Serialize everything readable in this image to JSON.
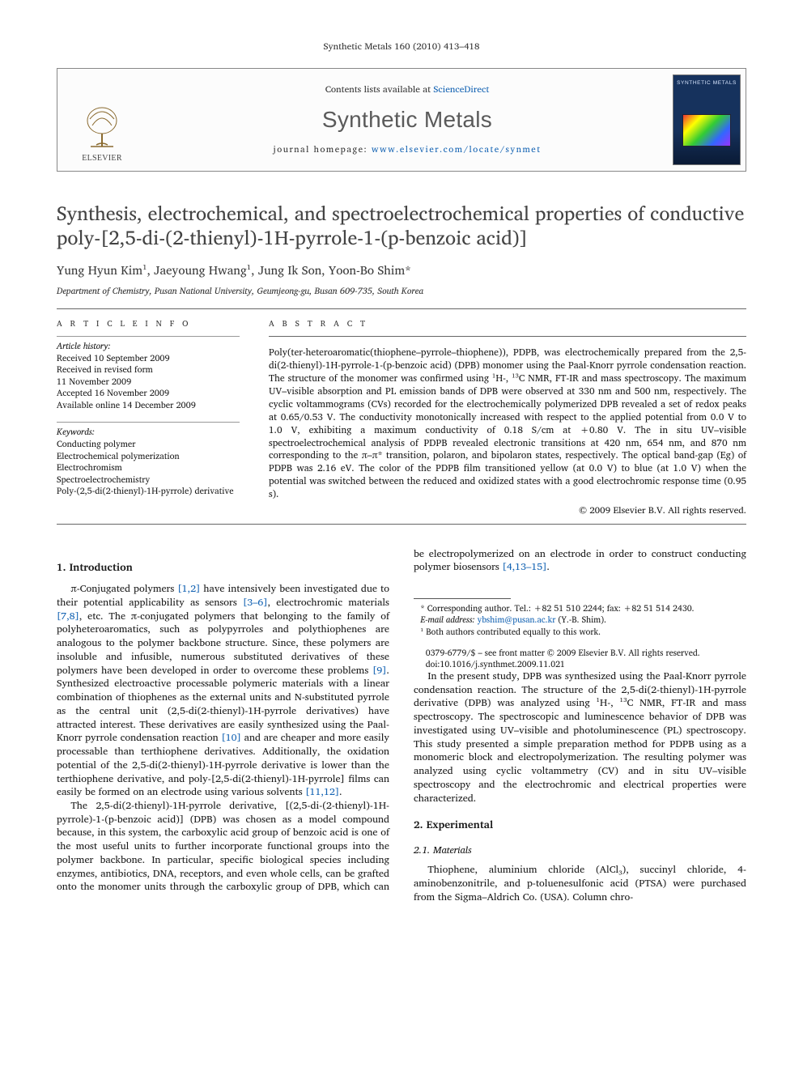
{
  "running_head": "Synthetic Metals 160 (2010) 413–418",
  "masthead": {
    "sd_prefix": "Contents lists available at ",
    "sd_link": "ScienceDirect",
    "journal": "Synthetic Metals",
    "homepage_prefix": "journal homepage: ",
    "homepage_url": "www.elsevier.com/locate/synmet",
    "publisher": "ELSEVIER",
    "cover_label": "SYNTHETIC METALS"
  },
  "article": {
    "title": "Synthesis, electrochemical, and spectroelectrochemical properties of conductive poly-[2,5-di-(2-thienyl)-1H-pyrrole-1-(p-benzoic acid)]",
    "authors_html": "Yung Hyun Kim¹, Jaeyoung Hwang¹, Jung Ik Son, Yoon-Bo Shim*",
    "affiliation": "Department of Chemistry, Pusan National University, Geumjeong-gu, Busan 609-735, South Korea"
  },
  "info": {
    "heading": "A R T I C L E   I N F O",
    "history_label": "Article history:",
    "received": "Received 10 September 2009",
    "revised1": "Received in revised form",
    "revised2": "11 November 2009",
    "accepted": "Accepted 16 November 2009",
    "online": "Available online 14 December 2009",
    "keywords_label": "Keywords:",
    "kw1": "Conducting polymer",
    "kw2": "Electrochemical polymerization",
    "kw3": "Electrochromism",
    "kw4": "Spectroelectrochemistry",
    "kw5": "Poly-(2,5-di(2-thienyl)-1H-pyrrole) derivative"
  },
  "abstract": {
    "heading": "A B S T R A C T",
    "text": "Poly(ter-heteroaromatic(thiophene–pyrrole–thiophene)), PDPB, was electrochemically prepared from the 2,5-di(2-thienyl)-1H-pyrrole-1-(p-benzoic acid) (DPB) monomer using the Paal-Knorr pyrrole condensation reaction. The structure of the monomer was confirmed using ¹H-, ¹³C NMR, FT-IR and mass spectroscopy. The maximum UV–visible absorption and PL emission bands of DPB were observed at 330 nm and 500 nm, respectively. The cyclic voltammograms (CVs) recorded for the electrochemically polymerized DPB revealed a set of redox peaks at 0.65/0.53 V. The conductivity monotonically increased with respect to the applied potential from 0.0 V to 1.0 V, exhibiting a maximum conductivity of 0.18 S/cm at +0.80 V. The in situ UV–visible spectroelectrochemical analysis of PDPB revealed electronic transitions at 420 nm, 654 nm, and 870 nm corresponding to the π–π* transition, polaron, and bipolaron states, respectively. The optical band-gap (Eg) of PDPB was 2.16 eV. The color of the PDPB film transitioned yellow (at 0.0 V) to blue (at 1.0 V) when the potential was switched between the reduced and oxidized states with a good electrochromic response time (0.95 s).",
    "copyright": "© 2009 Elsevier B.V. All rights reserved."
  },
  "sections": {
    "s1_title": "1.  Introduction",
    "s1_p1": "π-Conjugated polymers [1,2] have intensively been investigated due to their potential applicability as sensors [3–6], electrochromic materials [7,8], etc. The π-conjugated polymers that belonging to the family of polyheteroaromatics, such as polypyrroles and polythiophenes are analogous to the polymer backbone structure. Since, these polymers are insoluble and infusible, numerous substituted derivatives of these polymers have been developed in order to overcome these problems [9]. Synthesized electroactive processable polymeric materials with a linear combination of thiophenes as the external units and N-substituted pyrrole as the central unit (2,5-di(2-thienyl)-1H-pyrrole derivatives) have attracted interest. These derivatives are easily synthesized using the Paal-Knorr pyrrole condensation reaction [10] and are cheaper and more easily processable than terthiophene derivatives. Additionally, the oxidation potential of the 2,5-di(2-thienyl)-1H-pyrrole derivative is lower than the terthiophene derivative, and poly-[2,5-di(2-thienyl)-1H-pyrrole] films can easily be formed on an electrode using various solvents [11,12].",
    "s1_p2": "The 2,5-di(2-thienyl)-1H-pyrrole derivative, [(2,5-di-(2-thienyl)-1H-pyrrole)-1-(p-benzoic acid)] (DPB) was chosen as a model compound because, in this system, the carboxylic acid group of benzoic acid is one of the most useful units to further incorporate functional groups into the polymer backbone. In particular, specific biological species including enzymes, antibiotics, DNA, receptors, and even whole cells, can be grafted onto the monomer units through the carboxylic group of DPB, which can be electropolymerized on an electrode in order to construct conducting polymer biosensors [4,13–15].",
    "s1_p3": "In the present study, DPB was synthesized using the Paal-Knorr pyrrole condensation reaction. The structure of the 2,5-di(2-thienyl)-1H-pyrrole derivative (DPB) was analyzed using ¹H-, ¹³C NMR, FT-IR and mass spectroscopy. The spectroscopic and luminescence behavior of DPB was investigated using UV–visible and photoluminescence (PL) spectroscopy. This study presented a simple preparation method for PDPB using as a monomeric block and electropolymerization. The resulting polymer was analyzed using cyclic voltammetry (CV) and in situ UV–visible spectroscopy and the electrochromic and electrical properties were characterized.",
    "s2_title": "2.  Experimental",
    "s21_title": "2.1.  Materials",
    "s21_p1": "Thiophene, aluminium chloride (AlCl₃), succinyl chloride, 4-aminobenzonitrile, and p-toluenesulfonic acid (PTSA) were purchased from the Sigma–Aldrich Co. (USA). Column chro-"
  },
  "footnotes": {
    "corr": "* Corresponding author. Tel.: +82 51 510 2244; fax: +82 51 514 2430.",
    "email_lbl": "E-mail address: ",
    "email": "ybshim@pusan.ac.kr",
    "email_tail": " (Y.-B. Shim).",
    "equal": "¹ Both authors contributed equally to this work."
  },
  "doi": {
    "line1": "0379-6779/$ – see front matter © 2009 Elsevier B.V. All rights reserved.",
    "line2": "doi:10.1016/j.synthmet.2009.11.021"
  },
  "colors": {
    "link": "#1463b3",
    "text": "#1a1a1a",
    "heading_gray": "#434343",
    "rule": "#666666"
  }
}
